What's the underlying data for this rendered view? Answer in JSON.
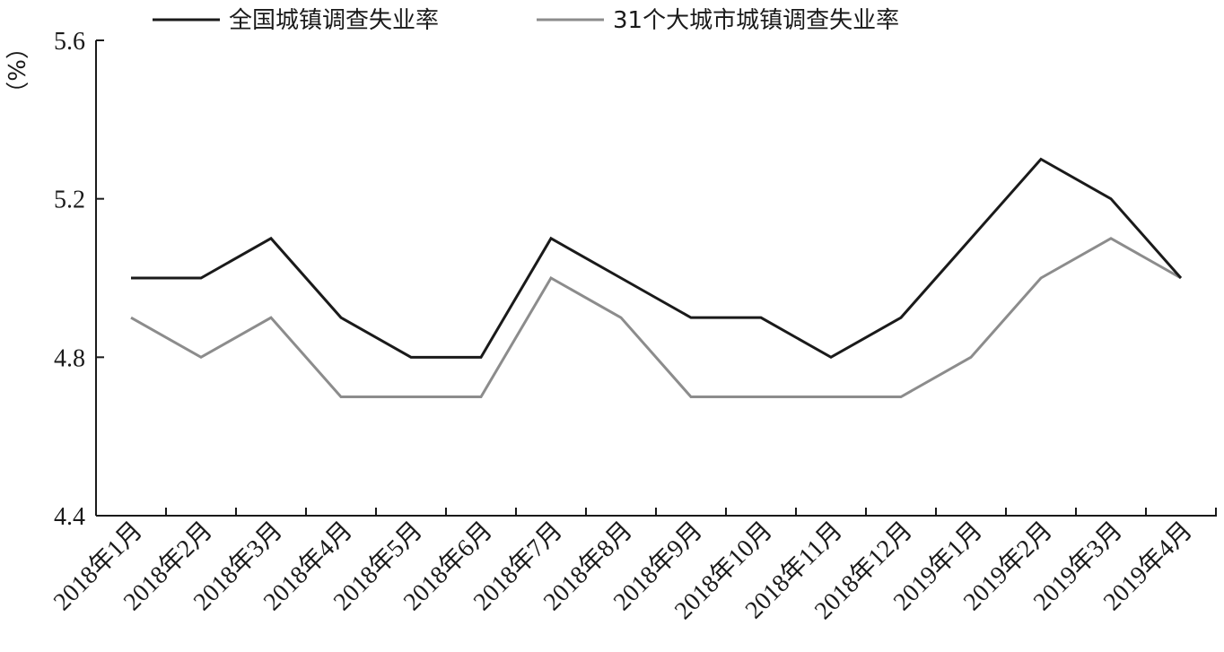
{
  "chart_data": {
    "type": "line",
    "title": "",
    "xlabel": "",
    "ylabel": "（%）",
    "ylim": [
      4.4,
      5.6
    ],
    "yticks": [
      "4.4",
      "4.8",
      "5.2",
      "5.6"
    ],
    "grid": false,
    "legend_position": "top",
    "categories": [
      "2018年1月",
      "2018年2月",
      "2018年3月",
      "2018年4月",
      "2018年5月",
      "2018年6月",
      "2018年7月",
      "2018年8月",
      "2018年9月",
      "2018年10月",
      "2018年11月",
      "2018年12月",
      "2019年1月",
      "2019年2月",
      "2019年3月",
      "2019年4月"
    ],
    "series": [
      {
        "name": "全国城镇调查失业率",
        "color": "#1a1a1a",
        "values": [
          5.0,
          5.0,
          5.1,
          4.9,
          4.8,
          4.8,
          5.1,
          5.0,
          4.9,
          4.9,
          4.8,
          4.9,
          5.1,
          5.3,
          5.2,
          5.0
        ]
      },
      {
        "name": "31个大城市城镇调查失业率",
        "color": "#8c8c8c",
        "values": [
          4.9,
          4.8,
          4.9,
          4.7,
          4.7,
          4.7,
          5.0,
          4.9,
          4.7,
          4.7,
          4.7,
          4.7,
          4.8,
          5.0,
          5.1,
          5.0
        ]
      }
    ]
  }
}
